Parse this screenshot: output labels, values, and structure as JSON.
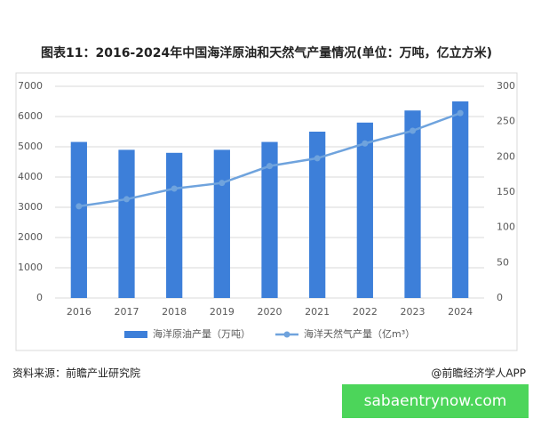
{
  "chart_data": {
    "type": "bar",
    "title": "图表11：2016-2024年中国海洋原油和天然气产量情况(单位：万吨，亿立方米)",
    "categories": [
      "2016",
      "2017",
      "2018",
      "2019",
      "2020",
      "2021",
      "2022",
      "2023",
      "2024"
    ],
    "series": [
      {
        "name": "海洋原油产量（万吨）",
        "type": "bar",
        "color": "#3d7fd9",
        "values": [
          5160,
          4900,
          4800,
          4900,
          5160,
          5500,
          5800,
          6200,
          6500
        ]
      },
      {
        "name": "海洋天然气产量（亿m³）",
        "type": "line",
        "axis": "y2",
        "color": "#6fa3dd",
        "values": [
          130,
          140,
          155,
          163,
          187,
          198,
          219,
          237,
          262
        ]
      }
    ],
    "ylim": [
      0,
      7000
    ],
    "yticks": [
      0,
      1000,
      2000,
      3000,
      4000,
      5000,
      6000,
      7000
    ],
    "y2lim": [
      0,
      300
    ],
    "y2ticks": [
      0,
      50,
      100,
      150,
      200,
      250,
      300
    ],
    "grid": true,
    "legend": "bottom"
  },
  "source": "资料来源：前瞻产业研究院",
  "credit": "@前瞻经济学人APP",
  "banner": "sabaentrynow.com"
}
